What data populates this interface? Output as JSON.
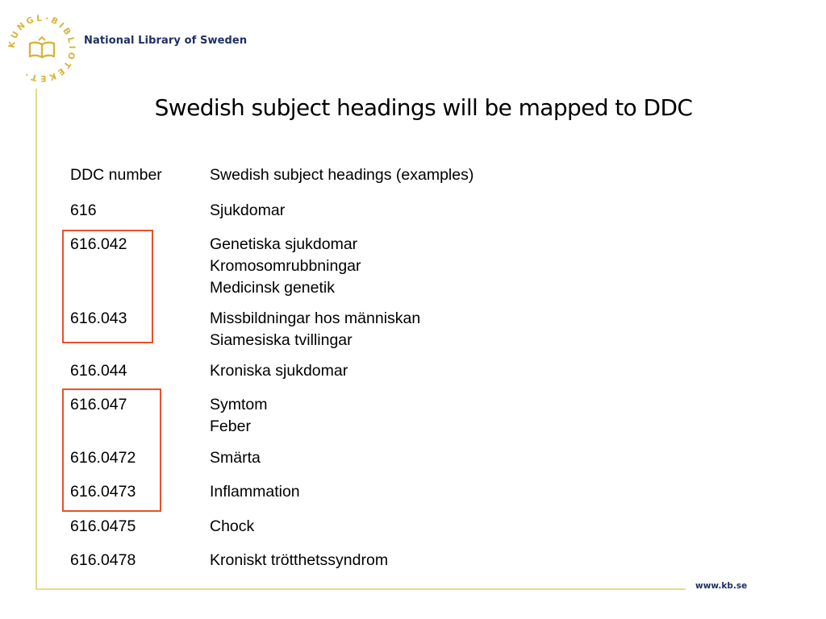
{
  "header": {
    "logo_ring_text": "KUNGL·BIBLIOTEKET·",
    "organization": "National Library of Sweden"
  },
  "title": "Swedish subject headings will be mapped to DDC",
  "table": {
    "columns": [
      "DDC number",
      "Swedish subject headings (examples)"
    ],
    "rows": [
      {
        "ddc": "616",
        "headings": [
          "Sjukdomar"
        ]
      },
      {
        "ddc": "616.042",
        "headings": [
          "Genetiska sjukdomar",
          "Kromosomrubbningar",
          "Medicinsk genetik"
        ]
      },
      {
        "ddc": "616.043",
        "headings": [
          "Missbildningar hos människan",
          "Siamesiska tvillingar"
        ]
      },
      {
        "ddc": "616.044",
        "headings": [
          "Kroniska sjukdomar"
        ]
      },
      {
        "ddc": "616.047",
        "headings": [
          "Symtom",
          "Feber"
        ]
      },
      {
        "ddc": "616.0472",
        "headings": [
          "Smärta"
        ]
      },
      {
        "ddc": "616.0473",
        "headings": [
          "Inflammation"
        ]
      },
      {
        "ddc": "616.0475",
        "headings": [
          "Chock"
        ]
      },
      {
        "ddc": "616.0478",
        "headings": [
          "Kroniskt trötthetssyndrom"
        ]
      }
    ]
  },
  "footer": {
    "url": "www.kb.se"
  },
  "colors": {
    "brand_navy": "#1f2f63",
    "logo_gold": "#d7b53a",
    "rule_gold": "#e6d98a",
    "highlight_orange": "#e8502a"
  }
}
